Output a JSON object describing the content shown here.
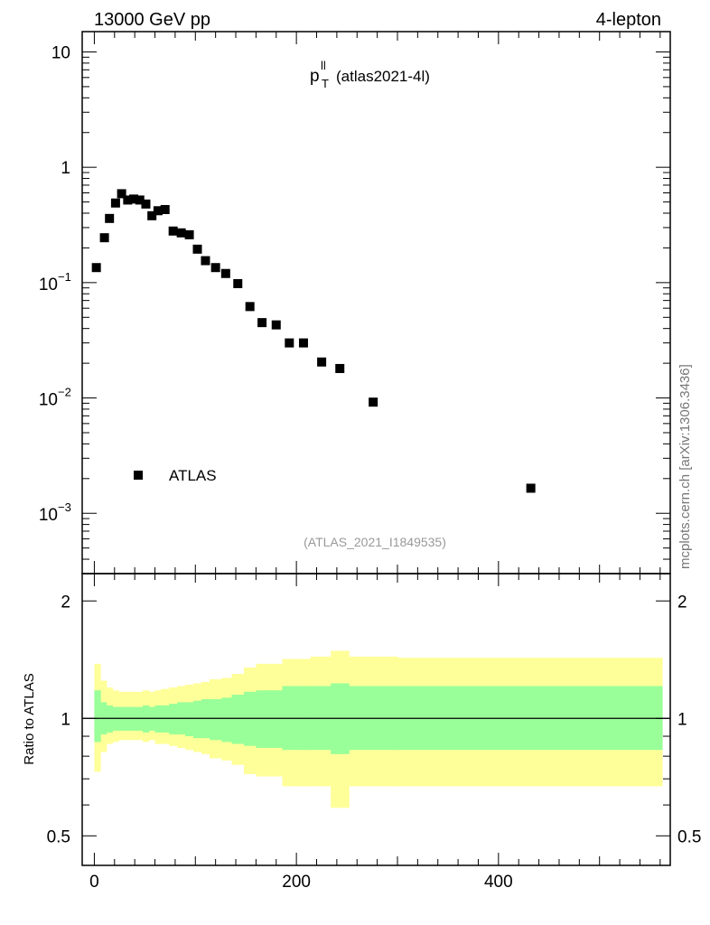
{
  "header": {
    "left": "13000 GeV pp",
    "right": "4-lepton"
  },
  "side_label": "mcplots.cern.ch [arXiv:1306.3436]",
  "chart_data": [
    {
      "type": "scatter",
      "title_main": "p",
      "title_sup": "ll",
      "title_sub": "T",
      "title_rest": "(atlas2021-4l)",
      "analysis_label": "(ATLAS_2021_I1849535)",
      "legend": [
        {
          "name": "ATLAS",
          "marker": "square",
          "color": "#000000"
        }
      ],
      "yscale": "log",
      "ylim": [
        0.0003,
        15
      ],
      "xlim": [
        -12,
        570
      ],
      "yticks": [
        {
          "value": 10,
          "base": "10",
          "exp": ""
        },
        {
          "value": 1,
          "base": "1",
          "exp": ""
        },
        {
          "value": 0.1,
          "base": "10",
          "exp": "−1"
        },
        {
          "value": 0.01,
          "base": "10",
          "exp": "−2"
        },
        {
          "value": 0.001,
          "base": "10",
          "exp": "−3"
        }
      ],
      "series": [
        {
          "name": "ATLAS",
          "x": [
            2,
            10,
            15,
            21,
            27,
            33,
            39,
            45,
            51,
            57,
            63,
            70,
            78,
            86,
            94,
            102,
            110,
            120,
            130,
            142,
            154,
            166,
            180,
            193,
            207,
            225,
            243,
            276,
            432
          ],
          "y": [
            0.135,
            0.245,
            0.36,
            0.49,
            0.59,
            0.52,
            0.53,
            0.52,
            0.48,
            0.38,
            0.42,
            0.43,
            0.28,
            0.27,
            0.26,
            0.195,
            0.155,
            0.135,
            0.12,
            0.098,
            0.062,
            0.045,
            0.043,
            0.03,
            0.03,
            0.0205,
            0.018,
            0.0092,
            0.00165
          ]
        }
      ]
    },
    {
      "type": "area",
      "ylabel": "Ratio to ATLAS",
      "yscale": "log",
      "ylim": [
        0.42,
        2.35
      ],
      "xlim": [
        -12,
        570
      ],
      "yticks": [
        0.5,
        1,
        2
      ],
      "ytick_labels": [
        "0.5",
        "1",
        "2"
      ],
      "xticks": [
        0,
        200,
        400
      ],
      "xtick_labels": [
        "0",
        "200",
        "400"
      ],
      "reference_line": 1,
      "bin_edges": [
        0,
        6,
        12,
        18,
        24,
        30,
        36,
        42,
        48,
        54,
        60,
        66,
        74,
        82,
        90,
        98,
        106,
        114,
        126,
        136,
        148,
        160,
        174,
        186,
        200,
        214,
        234,
        252,
        300,
        562
      ],
      "bands": [
        {
          "name": "total uncertainty",
          "color": "#ffff99",
          "upper": [
            1.38,
            1.25,
            1.2,
            1.18,
            1.17,
            1.17,
            1.17,
            1.17,
            1.18,
            1.17,
            1.18,
            1.19,
            1.2,
            1.21,
            1.22,
            1.23,
            1.24,
            1.26,
            1.27,
            1.3,
            1.35,
            1.38,
            1.38,
            1.42,
            1.42,
            1.44,
            1.49,
            1.44,
            1.43
          ],
          "lower": [
            0.73,
            0.82,
            0.86,
            0.87,
            0.88,
            0.88,
            0.88,
            0.88,
            0.87,
            0.88,
            0.86,
            0.86,
            0.85,
            0.84,
            0.83,
            0.82,
            0.81,
            0.79,
            0.78,
            0.76,
            0.72,
            0.71,
            0.71,
            0.67,
            0.67,
            0.67,
            0.59,
            0.67,
            0.67
          ]
        },
        {
          "name": "statistical uncertainty",
          "color": "#99ff99",
          "upper": [
            1.18,
            1.1,
            1.08,
            1.07,
            1.07,
            1.07,
            1.07,
            1.07,
            1.08,
            1.07,
            1.08,
            1.08,
            1.09,
            1.1,
            1.1,
            1.11,
            1.12,
            1.12,
            1.13,
            1.15,
            1.17,
            1.18,
            1.18,
            1.21,
            1.21,
            1.21,
            1.23,
            1.21,
            1.21
          ],
          "lower": [
            0.87,
            0.91,
            0.92,
            0.93,
            0.93,
            0.93,
            0.93,
            0.93,
            0.92,
            0.93,
            0.92,
            0.92,
            0.91,
            0.91,
            0.9,
            0.89,
            0.89,
            0.88,
            0.87,
            0.86,
            0.85,
            0.84,
            0.84,
            0.83,
            0.83,
            0.83,
            0.81,
            0.83,
            0.83
          ]
        }
      ]
    }
  ]
}
